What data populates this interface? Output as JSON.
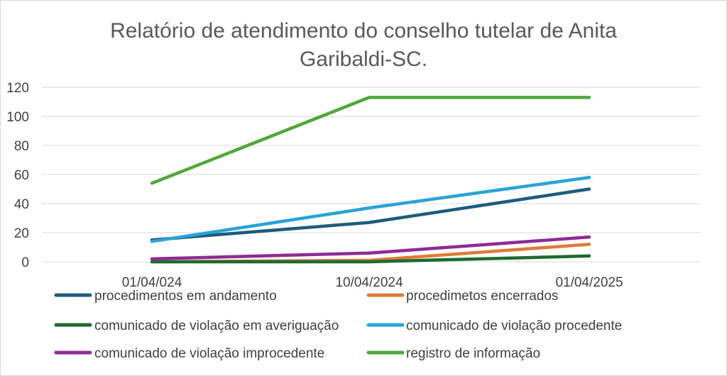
{
  "chart_data": {
    "type": "line",
    "title_lines": [
      "Relatório de atendimento do conselho tutelar de Anita",
      "Garibaldi-SC."
    ],
    "categories": [
      "01/04/024",
      "10/04/2024",
      "01/04/2025"
    ],
    "ylim": [
      0,
      120
    ],
    "yticks": [
      0,
      20,
      40,
      60,
      80,
      100,
      120
    ],
    "grid": true,
    "legend_position": "bottom",
    "series": [
      {
        "name": "procedimentos em andamento",
        "values": [
          15,
          27,
          50
        ],
        "color": "#1f5c7a"
      },
      {
        "name": "procedimetos encerrados",
        "values": [
          0,
          1,
          12
        ],
        "color": "#e07b39"
      },
      {
        "name": "comunicado de violação em averiguação",
        "values": [
          0,
          0,
          4
        ],
        "color": "#1e6b2e"
      },
      {
        "name": "comunicado de violação procedente",
        "values": [
          14,
          37,
          58
        ],
        "color": "#2aa3d6"
      },
      {
        "name": "comunicado de violação improcedente",
        "values": [
          2,
          6,
          17
        ],
        "color": "#8e2c94"
      },
      {
        "name": "registro de informação",
        "values": [
          54,
          113,
          113
        ],
        "color": "#4ea83a"
      }
    ]
  }
}
